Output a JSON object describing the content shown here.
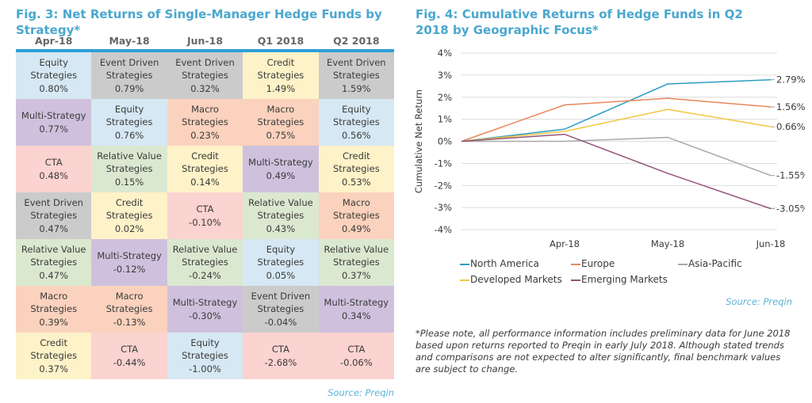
{
  "fig3": {
    "title": "Fig. 3: Net Returns of Single-Manager Hedge Funds by Strategy*",
    "source": "Source: Preqin",
    "columns": [
      "Apr-18",
      "May-18",
      "Jun-18",
      "Q1 2018",
      "Q2 2018"
    ],
    "strategy_colors": {
      "Equity Strategies": "#d6e8f3",
      "Event Driven Strategies": "#cbcbcb",
      "Credit Strategies": "#fdf2c8",
      "Multi-Strategy": "#cfc1de",
      "Macro Strategies": "#fbd2bd",
      "CTA": "#fbd3d0",
      "Relative Value Strategies": "#dbe8d0"
    },
    "rows": [
      [
        {
          "line1": "Equity",
          "line2": "Strategies",
          "value": "0.80%",
          "strategy": "Equity Strategies"
        },
        {
          "line1": "Event Driven",
          "line2": "Strategies",
          "value": "0.79%",
          "strategy": "Event Driven Strategies"
        },
        {
          "line1": "Event Driven",
          "line2": "Strategies",
          "value": "0.32%",
          "strategy": "Event Driven Strategies"
        },
        {
          "line1": "Credit",
          "line2": "Strategies",
          "value": "1.49%",
          "strategy": "Credit Strategies"
        },
        {
          "line1": "Event Driven",
          "line2": "Strategies",
          "value": "1.59%",
          "strategy": "Event Driven Strategies"
        }
      ],
      [
        {
          "line1": "Multi-Strategy",
          "line2": "",
          "value": "0.77%",
          "strategy": "Multi-Strategy"
        },
        {
          "line1": "Equity",
          "line2": "Strategies",
          "value": "0.76%",
          "strategy": "Equity Strategies"
        },
        {
          "line1": "Macro",
          "line2": "Strategies",
          "value": "0.23%",
          "strategy": "Macro Strategies"
        },
        {
          "line1": "Macro",
          "line2": "Strategies",
          "value": "0.75%",
          "strategy": "Macro Strategies"
        },
        {
          "line1": "Equity",
          "line2": "Strategies",
          "value": "0.56%",
          "strategy": "Equity Strategies"
        }
      ],
      [
        {
          "line1": "CTA",
          "line2": "",
          "value": "0.48%",
          "strategy": "CTA"
        },
        {
          "line1": "Relative Value",
          "line2": "Strategies",
          "value": "0.15%",
          "strategy": "Relative Value Strategies"
        },
        {
          "line1": "Credit",
          "line2": "Strategies",
          "value": "0.14%",
          "strategy": "Credit Strategies"
        },
        {
          "line1": "Multi-Strategy",
          "line2": "",
          "value": "0.49%",
          "strategy": "Multi-Strategy"
        },
        {
          "line1": "Credit",
          "line2": "Strategies",
          "value": "0.53%",
          "strategy": "Credit Strategies"
        }
      ],
      [
        {
          "line1": "Event Driven",
          "line2": "Strategies",
          "value": "0.47%",
          "strategy": "Event Driven Strategies"
        },
        {
          "line1": "Credit",
          "line2": "Strategies",
          "value": "0.02%",
          "strategy": "Credit Strategies"
        },
        {
          "line1": "CTA",
          "line2": "",
          "value": "-0.10%",
          "strategy": "CTA"
        },
        {
          "line1": "Relative Value",
          "line2": "Strategies",
          "value": "0.43%",
          "strategy": "Relative Value Strategies"
        },
        {
          "line1": "Macro",
          "line2": "Strategies",
          "value": "0.49%",
          "strategy": "Macro Strategies"
        }
      ],
      [
        {
          "line1": "Relative Value",
          "line2": "Strategies",
          "value": "0.47%",
          "strategy": "Relative Value Strategies"
        },
        {
          "line1": "Multi-Strategy",
          "line2": "",
          "value": "-0.12%",
          "strategy": "Multi-Strategy"
        },
        {
          "line1": "Relative Value",
          "line2": "Strategies",
          "value": "-0.24%",
          "strategy": "Relative Value Strategies"
        },
        {
          "line1": "Equity",
          "line2": "Strategies",
          "value": "0.05%",
          "strategy": "Equity Strategies"
        },
        {
          "line1": "Relative Value",
          "line2": "Strategies",
          "value": "0.37%",
          "strategy": "Relative Value Strategies"
        }
      ],
      [
        {
          "line1": "Macro",
          "line2": "Strategies",
          "value": "0.39%",
          "strategy": "Macro Strategies"
        },
        {
          "line1": "Macro",
          "line2": "Strategies",
          "value": "-0.13%",
          "strategy": "Macro Strategies"
        },
        {
          "line1": "Multi-Strategy",
          "line2": "",
          "value": "-0.30%",
          "strategy": "Multi-Strategy"
        },
        {
          "line1": "Event Driven",
          "line2": "Strategies",
          "value": "-0.04%",
          "strategy": "Event Driven Strategies"
        },
        {
          "line1": "Multi-Strategy",
          "line2": "",
          "value": "0.34%",
          "strategy": "Multi-Strategy"
        }
      ],
      [
        {
          "line1": "Credit",
          "line2": "Strategies",
          "value": "0.37%",
          "strategy": "Credit Strategies"
        },
        {
          "line1": "CTA",
          "line2": "",
          "value": "-0.44%",
          "strategy": "CTA"
        },
        {
          "line1": "Equity",
          "line2": "Strategies",
          "value": "-1.00%",
          "strategy": "Equity Strategies"
        },
        {
          "line1": "CTA",
          "line2": "",
          "value": "-2.68%",
          "strategy": "CTA"
        },
        {
          "line1": "CTA",
          "line2": "",
          "value": "-0.06%",
          "strategy": "CTA"
        }
      ]
    ]
  },
  "fig4": {
    "title": "Fig. 4: Cumulative Returns of Hedge Funds in Q2 2018 by Geographic Focus*",
    "source": "Source: Preqin",
    "note": "*Please note, all performance information includes preliminary data for June 2018 based upon returns reported to Preqin in early July 2018. Although stated trends and comparisons are not expected to alter significantly, final benchmark values are subject to change."
  },
  "chart_data": [
    {
      "type": "table",
      "title": "Fig. 3: Net Returns of Single-Manager Hedge Funds by Strategy*",
      "columns": [
        "Apr-18",
        "May-18",
        "Jun-18",
        "Q1 2018",
        "Q2 2018"
      ],
      "ranked_values": {
        "Apr-18": [
          [
            "Equity Strategies",
            0.8
          ],
          [
            "Multi-Strategy",
            0.77
          ],
          [
            "CTA",
            0.48
          ],
          [
            "Event Driven Strategies",
            0.47
          ],
          [
            "Relative Value Strategies",
            0.47
          ],
          [
            "Macro Strategies",
            0.39
          ],
          [
            "Credit Strategies",
            0.37
          ]
        ],
        "May-18": [
          [
            "Event Driven Strategies",
            0.79
          ],
          [
            "Equity Strategies",
            0.76
          ],
          [
            "Relative Value Strategies",
            0.15
          ],
          [
            "Credit Strategies",
            0.02
          ],
          [
            "Multi-Strategy",
            -0.12
          ],
          [
            "Macro Strategies",
            -0.13
          ],
          [
            "CTA",
            -0.44
          ]
        ],
        "Jun-18": [
          [
            "Event Driven Strategies",
            0.32
          ],
          [
            "Macro Strategies",
            0.23
          ],
          [
            "Credit Strategies",
            0.14
          ],
          [
            "CTA",
            -0.1
          ],
          [
            "Relative Value Strategies",
            -0.24
          ],
          [
            "Multi-Strategy",
            -0.3
          ],
          [
            "Equity Strategies",
            -1.0
          ]
        ],
        "Q1 2018": [
          [
            "Credit Strategies",
            1.49
          ],
          [
            "Macro Strategies",
            0.75
          ],
          [
            "Multi-Strategy",
            0.49
          ],
          [
            "Relative Value Strategies",
            0.43
          ],
          [
            "Equity Strategies",
            0.05
          ],
          [
            "Event Driven Strategies",
            -0.04
          ],
          [
            "CTA",
            -2.68
          ]
        ],
        "Q2 2018": [
          [
            "Event Driven Strategies",
            1.59
          ],
          [
            "Equity Strategies",
            0.56
          ],
          [
            "Credit Strategies",
            0.53
          ],
          [
            "Macro Strategies",
            0.49
          ],
          [
            "Relative Value Strategies",
            0.37
          ],
          [
            "Multi-Strategy",
            0.34
          ],
          [
            "CTA",
            -0.06
          ]
        ]
      },
      "unit": "%"
    },
    {
      "type": "line",
      "title": "Fig. 4: Cumulative Returns of Hedge Funds in Q2 2018 by Geographic Focus*",
      "xlabel": "",
      "ylabel": "Cumulative Net Return",
      "x": [
        "",
        "Apr-18",
        "May-18",
        "Jun-18"
      ],
      "ylim": [
        -4,
        4
      ],
      "yticks": [
        4,
        3,
        2,
        1,
        0,
        -1,
        -2,
        -3,
        -4
      ],
      "ytick_labels": [
        "4%",
        "3%",
        "2%",
        "1%",
        "0%",
        "-1%",
        "-2%",
        "-3%",
        "-4%"
      ],
      "grid": true,
      "legend": "bottom",
      "series": [
        {
          "name": "North America",
          "color": "#2e9cc4",
          "values": [
            0,
            0.55,
            2.6,
            2.79
          ],
          "end_label": "2.79%"
        },
        {
          "name": "Europe",
          "color": "#e8875a",
          "values": [
            0,
            1.65,
            1.95,
            1.56
          ],
          "end_label": "1.56%"
        },
        {
          "name": "Asia-Pacific",
          "color": "#a8a8a8",
          "values": [
            0,
            0.0,
            0.18,
            -1.55
          ],
          "end_label": "-1.55%"
        },
        {
          "name": "Developed Markets",
          "color": "#f2c640",
          "values": [
            0,
            0.45,
            1.45,
            0.66
          ],
          "end_label": "0.66%"
        },
        {
          "name": "Emerging Markets",
          "color": "#94537a",
          "values": [
            0,
            0.32,
            -1.45,
            -3.05
          ],
          "end_label": "-3.05%"
        }
      ]
    }
  ]
}
